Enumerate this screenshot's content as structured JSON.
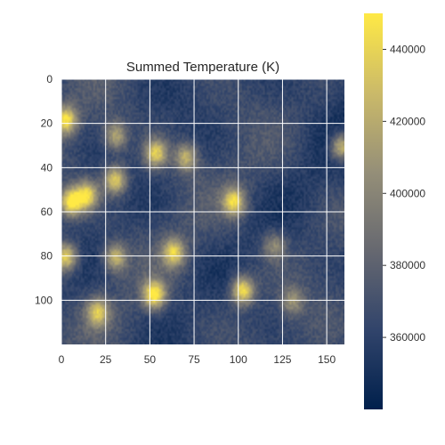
{
  "chart_data": {
    "type": "heatmap",
    "title": "Summed Temperature (K)",
    "xlabel": "",
    "ylabel": "",
    "x_range": [
      0,
      160
    ],
    "y_range": [
      0,
      120
    ],
    "y_inverted": true,
    "x_ticks": [
      0,
      25,
      50,
      75,
      100,
      125,
      150
    ],
    "y_ticks": [
      0,
      20,
      40,
      60,
      80,
      100
    ],
    "grid": true,
    "colormap": "cividis",
    "colormap_stops": [
      "#00204c",
      "#31446b",
      "#666870",
      "#958f78",
      "#cbba69",
      "#ffe945"
    ],
    "colorbar": {
      "range": [
        340000,
        450000
      ],
      "ticks": [
        360000,
        380000,
        400000,
        420000,
        440000
      ],
      "tick_labels": [
        "360000",
        "380000",
        "400000",
        "420000",
        "440000"
      ]
    },
    "background_level": 365000,
    "hotspots": [
      {
        "x": 5,
        "y": 55,
        "peak": 452000,
        "label": "left-edge large warm region"
      },
      {
        "x": 2,
        "y": 18,
        "peak": 445000,
        "label": "upper-left warm spot"
      },
      {
        "x": 2,
        "y": 80,
        "peak": 445000,
        "label": "left-edge warm spot"
      },
      {
        "x": 14,
        "y": 52,
        "peak": 440000,
        "label": "warm patch"
      },
      {
        "x": 30,
        "y": 45,
        "peak": 440000,
        "label": "warm spot"
      },
      {
        "x": 30,
        "y": 25,
        "peak": 420000,
        "label": "mild spot"
      },
      {
        "x": 53,
        "y": 33,
        "peak": 438000,
        "label": "warm spot"
      },
      {
        "x": 70,
        "y": 35,
        "peak": 425000,
        "label": "mild spot"
      },
      {
        "x": 63,
        "y": 78,
        "peak": 435000,
        "label": "warm spot"
      },
      {
        "x": 52,
        "y": 97,
        "peak": 452000,
        "label": "elongated warm region"
      },
      {
        "x": 30,
        "y": 80,
        "peak": 425000,
        "label": "mild spot"
      },
      {
        "x": 20,
        "y": 105,
        "peak": 430000,
        "label": "warm spot"
      },
      {
        "x": 97,
        "y": 55,
        "peak": 440000,
        "label": "warm spot"
      },
      {
        "x": 102,
        "y": 95,
        "peak": 450000,
        "label": "warm spot"
      },
      {
        "x": 158,
        "y": 30,
        "peak": 440000,
        "label": "right-edge warm spot"
      },
      {
        "x": 120,
        "y": 75,
        "peak": 405000,
        "label": "mild region"
      },
      {
        "x": 130,
        "y": 100,
        "peak": 405000,
        "label": "mild region"
      }
    ]
  }
}
